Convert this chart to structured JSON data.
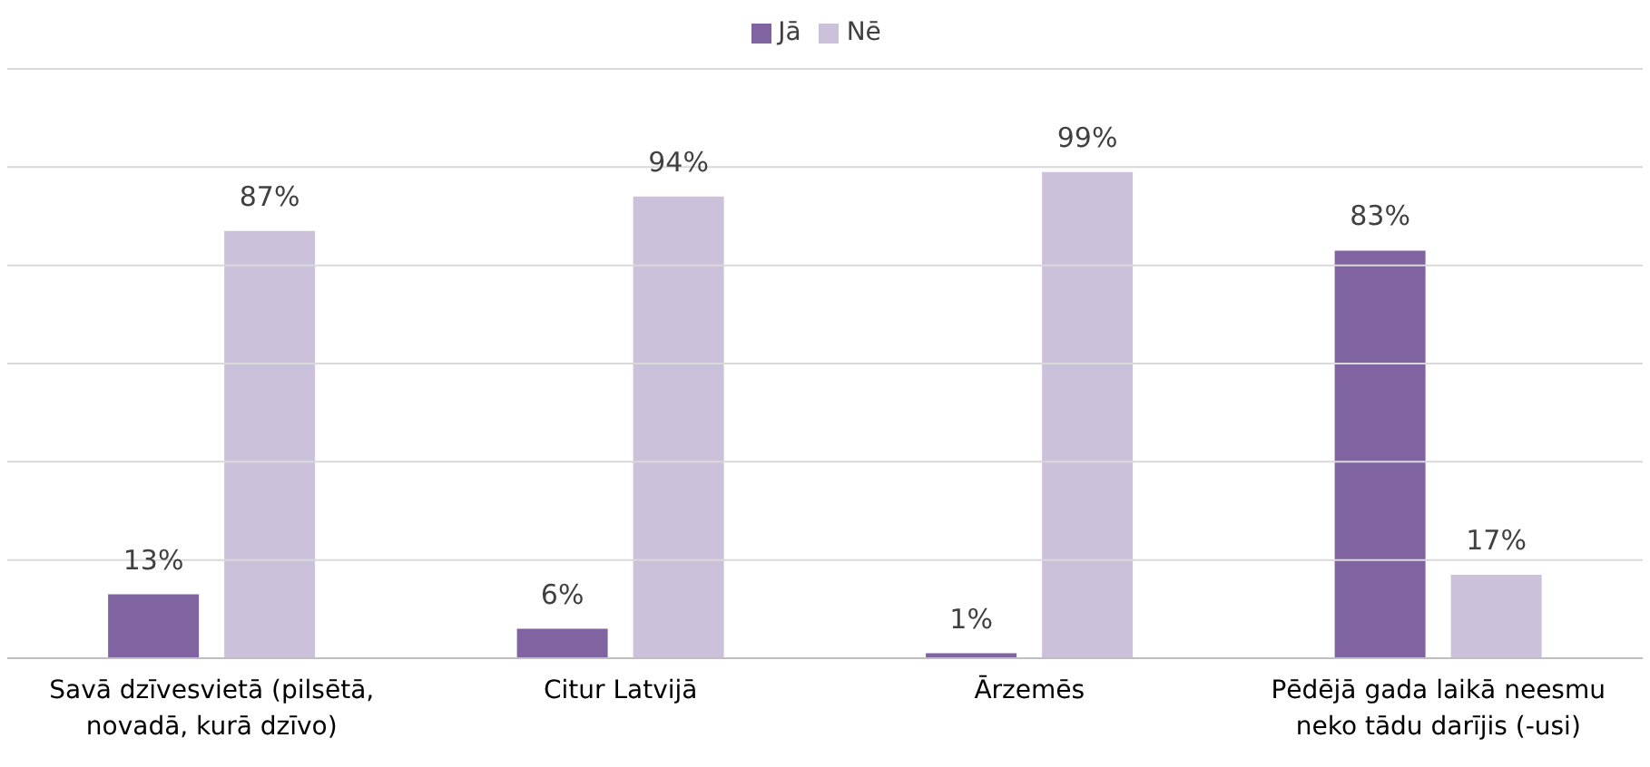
{
  "chart_data": {
    "type": "bar",
    "categories": [
      "Savā dzīvesvietā (pilsētā, novadā, kurā dzīvo)",
      "Citur Latvijā",
      "Ārzemēs",
      "Pēdējā gada laikā neesmu neko tādu darījis (-usi)"
    ],
    "series": [
      {
        "name": "Jā",
        "color": "#8064a2",
        "values": [
          13,
          6,
          1,
          83
        ],
        "value_labels": [
          "13%",
          "6%",
          "1%",
          "83%"
        ]
      },
      {
        "name": "Nē",
        "color": "#ccc1da",
        "values": [
          87,
          94,
          99,
          17
        ],
        "value_labels": [
          "87%",
          "94%",
          "99%",
          "17%"
        ]
      }
    ],
    "ylim": [
      0,
      120
    ],
    "yticks": [
      {
        "value": 0,
        "label": null
      },
      {
        "value": 20,
        "label": null
      },
      {
        "value": 40,
        "label": null
      },
      {
        "value": 60,
        "label": null
      },
      {
        "value": 80,
        "label": null
      },
      {
        "value": 100,
        "label": null
      },
      {
        "value": 120,
        "label": null
      }
    ],
    "tick_labels": "x",
    "grid": "y",
    "legend": "top"
  }
}
